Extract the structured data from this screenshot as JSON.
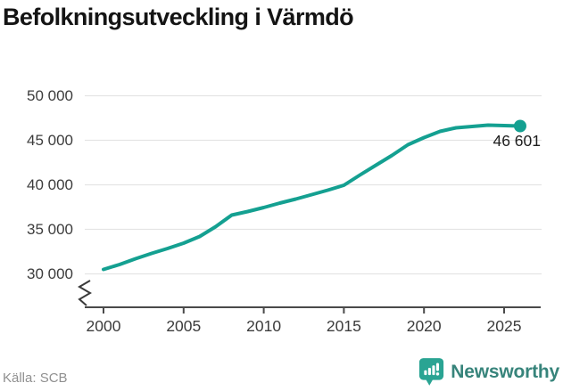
{
  "header": {
    "title": "Befolkningsutveckling i Värmdö"
  },
  "chart_data": {
    "type": "line",
    "title": "Befolkningsutveckling i Värmdö",
    "x": [
      2000,
      2001,
      2002,
      2003,
      2004,
      2005,
      2006,
      2007,
      2008,
      2009,
      2010,
      2011,
      2012,
      2013,
      2014,
      2015,
      2016,
      2017,
      2018,
      2019,
      2020,
      2021,
      2022,
      2023,
      2024,
      2025,
      2026
    ],
    "series": [
      {
        "name": "Befolkning",
        "values": [
          30500,
          31050,
          31700,
          32300,
          32850,
          33450,
          34200,
          35300,
          36600,
          37000,
          37450,
          37950,
          38400,
          38900,
          39400,
          39950,
          41100,
          42200,
          43300,
          44500,
          45300,
          46000,
          46400,
          46550,
          46700,
          46650,
          46601
        ]
      }
    ],
    "x_ticks": [
      2000,
      2005,
      2010,
      2015,
      2020,
      2025
    ],
    "x_tick_labels": [
      "2000",
      "2005",
      "2010",
      "2015",
      "2020",
      "2025"
    ],
    "y_ticks": [
      50000,
      45000,
      40000,
      35000,
      30000
    ],
    "y_tick_labels": [
      "50 000",
      "45 000",
      "40 000",
      "35 000",
      "30 000"
    ],
    "ylim": [
      30000,
      50000
    ],
    "xlabel": "",
    "ylabel": "",
    "grid": true,
    "legend_position": "none",
    "axis_break": true,
    "end_label": "46 601",
    "end_point": {
      "x": 2026,
      "value": 46601
    },
    "colors": {
      "line": "#14a091",
      "grid": "#e4e4e4",
      "axis": "#4a4a4a",
      "tick_text": "#3c3c3c"
    }
  },
  "footer": {
    "source": "Källa: SCB",
    "brand": "Newsworthy",
    "brand_color": "#37847b",
    "logo_color": "#2aa493"
  }
}
